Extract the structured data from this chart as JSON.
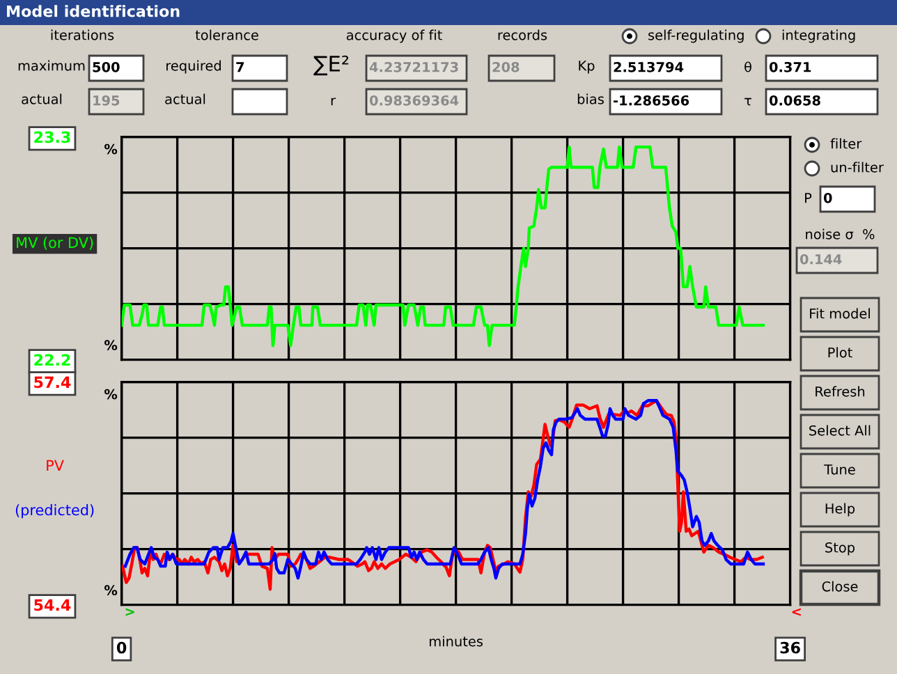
{
  "chart_data": [
    {
      "type": "other",
      "title": "Model identification",
      "annotations": [
        "iterations",
        "tolerance",
        "accuracy of fit",
        "records",
        "self-regulating",
        "integrating",
        "maximum",
        "500",
        "required",
        "7",
        "∑E²",
        "4.23721173",
        "208",
        "Kp",
        "2.513794",
        "θ",
        "0.371",
        "actual",
        "195",
        "actual",
        "r",
        "0.98369364",
        "bias",
        "-1.286566",
        "τ",
        "0.0658"
      ]
    },
    {
      "type": "line",
      "xlim": [
        0,
        36
      ],
      "xticks": [
        0,
        {
          "value": 3,
          "label": null
        },
        {
          "value": 6,
          "label": null
        },
        {
          "value": 9,
          "label": null
        },
        {
          "value": 12,
          "label": null
        },
        {
          "value": 15,
          "label": null
        },
        {
          "value": 18,
          "label": null
        },
        {
          "value": 21,
          "label": null
        },
        {
          "value": 24,
          "label": null
        },
        {
          "value": 27,
          "label": null
        },
        {
          "value": 30,
          "label": null
        },
        {
          "value": 33,
          "label": null
        },
        36
      ],
      "ylim": [
        22.2,
        23.3
      ],
      "yticks": [
        22.2,
        {
          "value": 22.475,
          "label": null
        },
        {
          "value": 22.75,
          "label": null
        },
        {
          "value": 23.025,
          "label": null
        },
        23.3
      ],
      "grid": true,
      "legend": "left",
      "tick_labels": "y",
      "annotations": [
        "%",
        "%"
      ],
      "series": [
        {
          "name": "MV (or DV)",
          "color": "#00ff00",
          "x": [
            0,
            0.15,
            0.45,
            0.6,
            0.95,
            1.1,
            1.2,
            1.35,
            1.45,
            1.95,
            2.1,
            2.2,
            2.3,
            4.33,
            4.45,
            4.75,
            4.9,
            5.0,
            5.1,
            5.35,
            5.5,
            5.6,
            5.75,
            5.85,
            5.95,
            6.2,
            6.35,
            6.5,
            7.85,
            7.95,
            8.05,
            8.15,
            8.25,
            8.95,
            9.1,
            9.25,
            9.4,
            9.55,
            9.65,
            10.25,
            10.3,
            10.55,
            10.7,
            12.65,
            12.8,
            13.0,
            13.15,
            13.25,
            13.4,
            13.6,
            13.7,
            13.85,
            15.15,
            15.25,
            15.45,
            15.75,
            15.95,
            16.1,
            16.25,
            16.35,
            17.35,
            17.45,
            17.7,
            17.85,
            18.95,
            19.1,
            19.35,
            19.55,
            19.7,
            19.8,
            19.95,
            21.15,
            21.25,
            21.35,
            21.5,
            21.65,
            21.75,
            21.9,
            21.95,
            22.2,
            22.35,
            22.45,
            22.6,
            22.8,
            22.9,
            23.0,
            23.15,
            24.0,
            24.1,
            24.2,
            25.35,
            25.45,
            25.65,
            25.75,
            25.95,
            26.1,
            26.7,
            26.8,
            26.95,
            27.55,
            27.7,
            28.45,
            28.6,
            29.3,
            29.4,
            29.5,
            29.65,
            29.85,
            29.95,
            30.1,
            30.25,
            30.45,
            30.6,
            30.75,
            30.95,
            31.35,
            31.45,
            31.6,
            32.0,
            32.15,
            33.1,
            33.25,
            33.45,
            34.55
          ],
          "values": [
            22.37,
            22.47,
            22.47,
            22.37,
            22.37,
            22.42,
            22.47,
            22.47,
            22.37,
            22.37,
            22.46,
            22.46,
            22.37,
            22.37,
            22.47,
            22.47,
            22.42,
            22.37,
            22.46,
            22.47,
            22.47,
            22.56,
            22.56,
            22.47,
            22.37,
            22.46,
            22.46,
            22.37,
            22.37,
            22.46,
            22.46,
            22.27,
            22.37,
            22.37,
            22.27,
            22.37,
            22.46,
            22.46,
            22.37,
            22.37,
            22.46,
            22.46,
            22.37,
            22.37,
            22.47,
            22.47,
            22.37,
            22.47,
            22.47,
            22.37,
            22.47,
            22.47,
            22.47,
            22.37,
            22.47,
            22.47,
            22.37,
            22.46,
            22.46,
            22.37,
            22.37,
            22.46,
            22.46,
            22.37,
            22.37,
            22.46,
            22.46,
            22.37,
            22.37,
            22.27,
            22.37,
            22.37,
            22.46,
            22.56,
            22.66,
            22.75,
            22.66,
            22.75,
            22.85,
            22.86,
            22.95,
            23.04,
            22.95,
            22.95,
            23.05,
            23.14,
            23.15,
            23.15,
            23.25,
            23.15,
            23.15,
            23.05,
            23.05,
            23.15,
            23.24,
            23.15,
            23.15,
            23.25,
            23.15,
            23.15,
            23.25,
            23.25,
            23.15,
            23.15,
            23.05,
            22.95,
            22.86,
            22.83,
            22.75,
            22.75,
            22.56,
            22.56,
            22.66,
            22.56,
            22.46,
            22.46,
            22.56,
            22.46,
            22.46,
            22.37,
            22.37,
            22.46,
            22.37,
            22.37
          ]
        }
      ]
    },
    {
      "type": "line",
      "xlabel": "minutes",
      "xlim": [
        0,
        36
      ],
      "xticks": [
        0,
        {
          "value": 3,
          "label": null
        },
        {
          "value": 6,
          "label": null
        },
        {
          "value": 9,
          "label": null
        },
        {
          "value": 12,
          "label": null
        },
        {
          "value": 15,
          "label": null
        },
        {
          "value": 18,
          "label": null
        },
        {
          "value": 21,
          "label": null
        },
        {
          "value": 24,
          "label": null
        },
        {
          "value": 27,
          "label": null
        },
        {
          "value": 30,
          "label": null
        },
        {
          "value": 33,
          "label": null
        },
        36
      ],
      "ylim": [
        54.4,
        57.4
      ],
      "yticks": [
        54.4,
        {
          "value": 55.15,
          "label": null
        },
        {
          "value": 55.9,
          "label": null
        },
        {
          "value": 56.65,
          "label": null
        },
        57.4
      ],
      "grid": true,
      "legend": "left",
      "annotations": [
        "%",
        "%",
        ">",
        "<"
      ],
      "series": [
        {
          "name": "PV",
          "color": "#ff0000",
          "x": [
            0.05,
            0.25,
            0.4,
            0.55,
            0.7,
            0.85,
            1.0,
            1.1,
            1.25,
            1.4,
            1.55,
            1.7,
            1.85,
            1.95,
            2.1,
            2.3,
            2.55,
            2.75,
            2.95,
            3.1,
            3.25,
            3.4,
            3.6,
            3.75,
            3.9,
            4.1,
            4.3,
            4.45,
            4.65,
            4.8,
            5.0,
            5.25,
            5.4,
            5.55,
            5.7,
            5.85,
            6.0,
            6.1,
            6.2,
            6.4,
            6.7,
            7.35,
            7.55,
            7.85,
            8.0,
            8.1,
            8.25,
            8.45,
            8.95,
            9.1,
            9.35,
            9.5,
            9.65,
            9.75,
            9.95,
            10.15,
            10.35,
            10.65,
            10.95,
            11.2,
            11.7,
            12.2,
            12.7,
            12.95,
            13.1,
            13.3,
            13.45,
            13.6,
            13.8,
            14.0,
            14.2,
            14.45,
            14.95,
            15.3,
            15.6,
            15.85,
            16.15,
            16.45,
            16.7,
            16.95,
            17.2,
            17.4,
            17.45,
            17.65,
            17.8,
            17.95,
            18.15,
            18.35,
            19.2,
            19.35,
            19.55,
            19.7,
            19.85,
            20.0,
            20.15,
            20.3,
            20.6,
            20.8,
            21.15,
            21.45,
            21.6,
            21.75,
            21.9,
            22.05,
            22.2,
            22.35,
            22.55,
            22.65,
            22.8,
            22.95,
            23.1,
            23.2,
            23.35,
            23.55,
            23.85,
            24.1,
            24.25,
            24.5,
            24.85,
            25.2,
            25.6,
            25.75,
            25.95,
            26.1,
            26.25,
            26.55,
            26.85,
            27.05,
            27.25,
            27.45,
            27.75,
            28.05,
            28.35,
            28.8,
            29.1,
            29.35,
            29.6,
            29.75,
            29.85,
            29.95,
            30.05,
            30.15,
            30.25,
            30.4,
            30.55,
            30.7,
            31.05,
            31.35,
            31.6,
            31.85,
            32.15,
            32.45,
            32.75,
            33.05,
            33.35,
            33.6,
            33.85,
            34.2,
            34.5
          ],
          "values": [
            54.92,
            54.7,
            54.76,
            54.95,
            55.17,
            55.17,
            54.98,
            54.83,
            54.89,
            54.79,
            55.11,
            55.01,
            55.08,
            55.01,
            54.95,
            55.08,
            55.01,
            55.08,
            55.01,
            55.01,
            54.95,
            55.01,
            54.95,
            55.04,
            54.98,
            55.01,
            54.95,
            54.98,
            54.83,
            55.01,
            55.04,
            54.98,
            54.86,
            54.95,
            54.79,
            54.89,
            55.2,
            55.08,
            54.98,
            54.98,
            55.08,
            55.08,
            54.92,
            54.89,
            54.61,
            55.17,
            55.01,
            55.08,
            55.08,
            54.92,
            54.95,
            55.01,
            55.08,
            55.08,
            55.01,
            54.89,
            54.92,
            54.98,
            55.04,
            55.04,
            55.01,
            55.01,
            54.92,
            54.95,
            54.98,
            54.86,
            54.89,
            54.98,
            54.89,
            54.95,
            54.89,
            54.95,
            55.01,
            55.08,
            55.04,
            54.98,
            55.11,
            55.14,
            55.11,
            55.04,
            54.98,
            54.92,
            54.92,
            54.79,
            55.04,
            55.14,
            55.11,
            55.01,
            55.01,
            54.83,
            55.11,
            55.2,
            55.17,
            55.01,
            54.86,
            54.92,
            54.95,
            54.98,
            54.95,
            54.84,
            55.01,
            55.58,
            55.92,
            55.86,
            56.01,
            56.29,
            56.36,
            56.54,
            56.83,
            56.67,
            56.54,
            56.61,
            56.88,
            56.89,
            56.86,
            56.79,
            56.89,
            57.09,
            57.09,
            57.04,
            57.08,
            56.92,
            56.79,
            56.89,
            56.98,
            56.96,
            56.95,
            57.01,
            56.98,
            57.01,
            56.95,
            57.08,
            57.08,
            57.15,
            57.04,
            56.96,
            56.95,
            56.86,
            56.64,
            56.01,
            55.39,
            55.51,
            55.92,
            55.39,
            55.42,
            55.33,
            55.39,
            55.11,
            55.2,
            55.17,
            55.11,
            55.08,
            55.04,
            55.01,
            54.98,
            55.04,
            55.01,
            55.01,
            55.04
          ]
        },
        {
          "name": "(predicted)",
          "color": "#0000ff",
          "x": [
            0.2,
            0.45,
            0.65,
            0.83,
            1.0,
            1.25,
            1.45,
            1.6,
            1.75,
            1.95,
            2.1,
            2.35,
            2.45,
            2.6,
            2.75,
            2.95,
            4.45,
            4.7,
            4.95,
            5.15,
            5.25,
            5.45,
            5.7,
            5.9,
            6.0,
            6.15,
            6.33,
            6.5,
            6.7,
            6.85,
            7.95,
            8.15,
            8.25,
            8.35,
            8.5,
            8.75,
            8.95,
            9.15,
            9.35,
            9.5,
            9.65,
            9.8,
            9.95,
            10.15,
            10.45,
            10.6,
            10.75,
            10.9,
            11.1,
            11.3,
            12.65,
            12.85,
            13.1,
            13.2,
            13.35,
            13.5,
            13.7,
            13.85,
            14.0,
            14.2,
            14.4,
            15.45,
            15.6,
            15.75,
            15.9,
            16.05,
            16.25,
            16.45,
            17.7,
            17.9,
            18.1,
            18.3,
            19.2,
            19.35,
            19.55,
            19.75,
            19.9,
            20.05,
            20.15,
            20.3,
            20.5,
            21.45,
            21.6,
            21.75,
            21.85,
            21.95,
            22.1,
            22.25,
            22.4,
            22.55,
            22.7,
            22.85,
            23.0,
            23.15,
            23.25,
            23.4,
            23.55,
            23.95,
            24.25,
            24.4,
            24.55,
            24.7,
            24.95,
            25.6,
            25.75,
            25.9,
            26.05,
            26.2,
            26.3,
            26.45,
            26.6,
            27.0,
            27.1,
            27.3,
            27.7,
            27.95,
            28.1,
            28.35,
            28.8,
            29.0,
            29.15,
            29.5,
            29.7,
            29.85,
            29.95,
            30.15,
            30.3,
            30.45,
            30.6,
            30.75,
            30.95,
            31.1,
            31.25,
            31.4,
            31.6,
            31.75,
            31.9,
            32.1,
            32.35,
            32.55,
            32.8,
            33.5,
            33.7,
            33.9,
            34.1,
            34.55
          ],
          "values": [
            54.92,
            55.08,
            55.17,
            55.17,
            55.01,
            54.95,
            55.08,
            55.17,
            55.04,
            55.01,
            54.92,
            54.92,
            55.11,
            55.01,
            55.08,
            54.95,
            54.95,
            55.11,
            55.17,
            55.17,
            55.01,
            55.17,
            55.17,
            55.26,
            55.36,
            55.17,
            54.95,
            55.01,
            55.11,
            54.95,
            54.95,
            55.01,
            55.09,
            54.89,
            54.83,
            54.83,
            55.01,
            54.95,
            54.89,
            54.76,
            54.92,
            55.11,
            55.01,
            54.95,
            54.95,
            55.11,
            55.01,
            55.11,
            55.01,
            54.95,
            54.95,
            55.01,
            55.11,
            55.17,
            55.08,
            55.17,
            55.01,
            55.17,
            55.01,
            55.11,
            55.17,
            55.17,
            55.04,
            55.11,
            55.01,
            55.11,
            55.01,
            54.95,
            54.95,
            55.17,
            55.08,
            54.95,
            54.95,
            55.01,
            55.11,
            55.17,
            55.01,
            54.89,
            54.76,
            54.89,
            54.95,
            54.95,
            55.08,
            55.36,
            55.7,
            55.89,
            55.73,
            55.83,
            56.08,
            56.26,
            56.51,
            56.58,
            56.48,
            56.42,
            56.76,
            56.86,
            56.9,
            56.9,
            56.92,
            56.98,
            57.04,
            56.95,
            56.9,
            56.9,
            56.79,
            56.67,
            56.67,
            56.83,
            57.04,
            56.95,
            56.9,
            56.9,
            57.04,
            56.95,
            56.9,
            56.95,
            57.11,
            57.15,
            57.15,
            57.04,
            56.95,
            56.9,
            56.79,
            56.48,
            56.2,
            56.14,
            56.08,
            55.92,
            55.7,
            55.45,
            55.59,
            55.51,
            55.26,
            55.2,
            55.26,
            55.36,
            55.26,
            55.2,
            55.14,
            55.01,
            54.95,
            54.95,
            55.11,
            55.01,
            54.95,
            54.95
          ]
        }
      ]
    },
    {
      "type": "other",
      "annotations": [
        "filter",
        "un-filter",
        "P",
        "0",
        "noise σ  %",
        "0.144",
        "Fit model",
        "Plot",
        "Refresh",
        "Select All",
        "Tune",
        "Help",
        "Stop",
        "Close"
      ]
    }
  ]
}
